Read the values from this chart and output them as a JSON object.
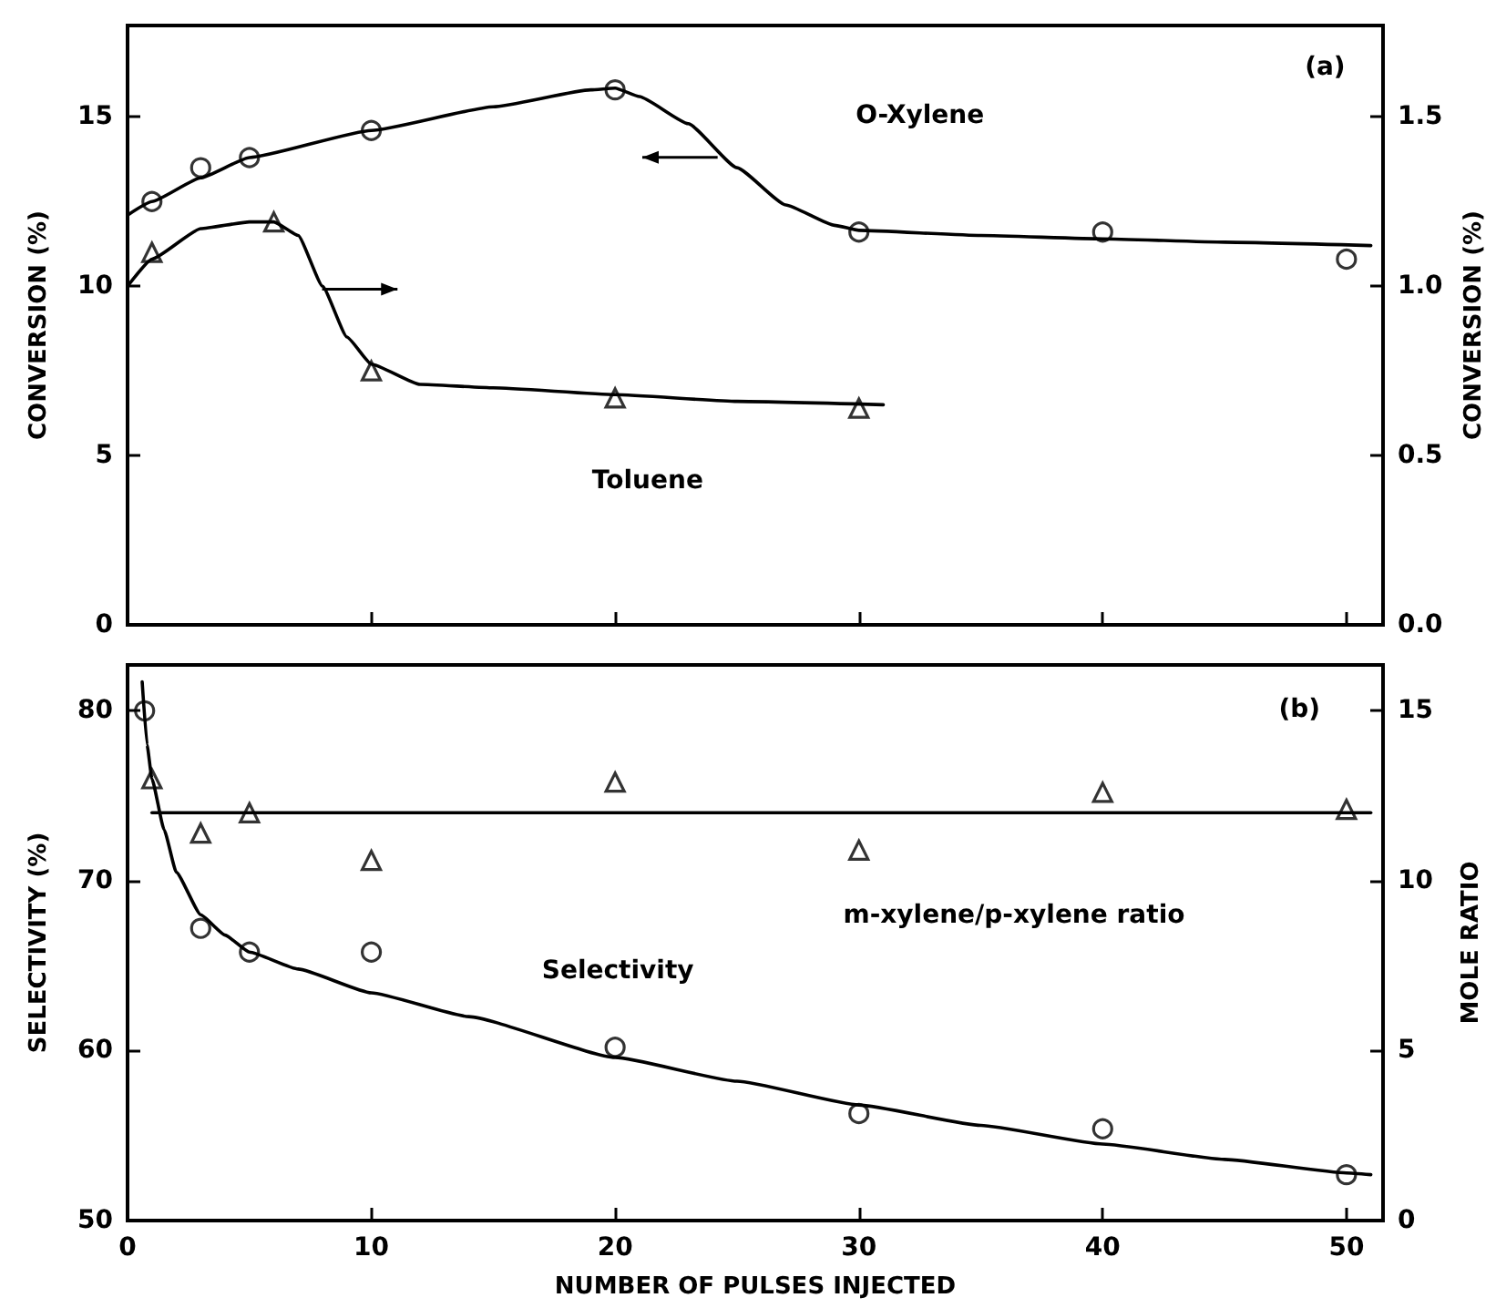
{
  "chart_data": [
    {
      "type": "line",
      "xlim": [
        0,
        51.5
      ],
      "xticks": [
        0,
        10,
        20,
        30,
        40,
        50
      ],
      "ylim": [
        0,
        17.7
      ],
      "yticks": [
        0,
        5,
        10,
        15
      ],
      "y2lim": [
        0,
        1.77
      ],
      "y2ticks": [
        {
          "value": 0,
          "label": "0.0"
        },
        {
          "value": 0.5,
          "label": "0.5"
        },
        {
          "value": 1,
          "label": "1.0"
        },
        {
          "value": 1.5,
          "label": "1.5"
        }
      ],
      "ylabel": "CONVERSION (%)",
      "y2label": "CONVERSION (%)",
      "tick_labels": "y",
      "grid": false,
      "annotations": [
        "(a)",
        "O-Xylene",
        "Toluene"
      ],
      "series": [
        {
          "type": "scatter",
          "marker": "circle",
          "color": "#000000",
          "x": [
            1,
            3,
            5,
            10,
            20,
            30,
            40,
            50
          ],
          "values": [
            12.5,
            13.5,
            13.8,
            14.6,
            15.8,
            11.6,
            11.6,
            10.8
          ]
        },
        {
          "type": "line",
          "marker": "none",
          "line_style": "solid",
          "color": "#000000",
          "x": [
            0,
            1,
            3,
            5,
            10,
            15,
            19,
            20,
            21,
            23,
            25,
            27,
            29,
            30,
            35,
            40,
            45,
            51
          ],
          "values": [
            12.1,
            12.5,
            13.2,
            13.8,
            14.6,
            15.3,
            15.8,
            15.85,
            15.6,
            14.8,
            13.5,
            12.4,
            11.8,
            11.65,
            11.5,
            11.4,
            11.3,
            11.2
          ]
        },
        {
          "type": "scatter",
          "axis": "y2",
          "marker": "triangle",
          "color": "#000000",
          "x": [
            1,
            6,
            10,
            20,
            30
          ],
          "values": [
            1.1,
            1.19,
            0.75,
            0.67,
            0.64
          ]
        },
        {
          "type": "line",
          "axis": "y2",
          "marker": "none",
          "line_style": "solid",
          "color": "#000000",
          "x": [
            0,
            1,
            3,
            5,
            6,
            7,
            8,
            9,
            10,
            12,
            15,
            20,
            25,
            31
          ],
          "values": [
            1.0,
            1.08,
            1.17,
            1.19,
            1.19,
            1.15,
            1.0,
            0.85,
            0.77,
            0.71,
            0.7,
            0.68,
            0.66,
            0.65
          ]
        }
      ]
    },
    {
      "type": "line",
      "xlim": [
        0,
        51.5
      ],
      "xticks": [
        0,
        10,
        20,
        30,
        40,
        50
      ],
      "ylim": [
        50,
        82.7
      ],
      "yticks": [
        50,
        60,
        70,
        80
      ],
      "y2lim": [
        0,
        16.35
      ],
      "y2ticks": [
        0,
        5,
        10,
        15
      ],
      "xlabel": "NUMBER OF PULSES INJECTED",
      "ylabel": "SELECTIVITY (%)",
      "y2label": "MOLE RATIO",
      "grid": false,
      "annotations": [
        "(b)",
        "Selectivity",
        "m-xylene/p-xylene ratio"
      ],
      "series": [
        {
          "type": "scatter",
          "marker": "circle",
          "color": "#000000",
          "x": [
            0.7,
            3,
            5,
            10,
            20,
            30,
            40,
            50
          ],
          "values": [
            80,
            67.2,
            65.8,
            65.8,
            60.2,
            56.3,
            55.4,
            52.7
          ]
        },
        {
          "type": "line",
          "marker": "none",
          "line_style": "solid",
          "color": "#000000",
          "x": [
            0.6,
            0.8,
            1,
            1.5,
            2,
            3,
            4,
            5,
            7,
            10,
            14,
            20,
            25,
            30,
            35,
            40,
            45,
            50,
            51
          ],
          "values": [
            81.7,
            78,
            76,
            73,
            70.5,
            68,
            66.8,
            65.8,
            64.8,
            63.4,
            62,
            59.6,
            58.2,
            56.8,
            55.6,
            54.5,
            53.6,
            52.8,
            52.7
          ]
        },
        {
          "type": "scatter",
          "axis": "y2",
          "marker": "triangle",
          "color": "#000000",
          "x": [
            1,
            3,
            5,
            10,
            20,
            30,
            40,
            50
          ],
          "values": [
            13.0,
            11.4,
            12.0,
            10.6,
            12.9,
            10.9,
            12.6,
            12.1
          ]
        },
        {
          "type": "line",
          "axis": "y2",
          "marker": "none",
          "line_style": "solid",
          "color": "#000000",
          "x": [
            1,
            51
          ],
          "values": [
            12,
            12
          ]
        }
      ]
    }
  ]
}
